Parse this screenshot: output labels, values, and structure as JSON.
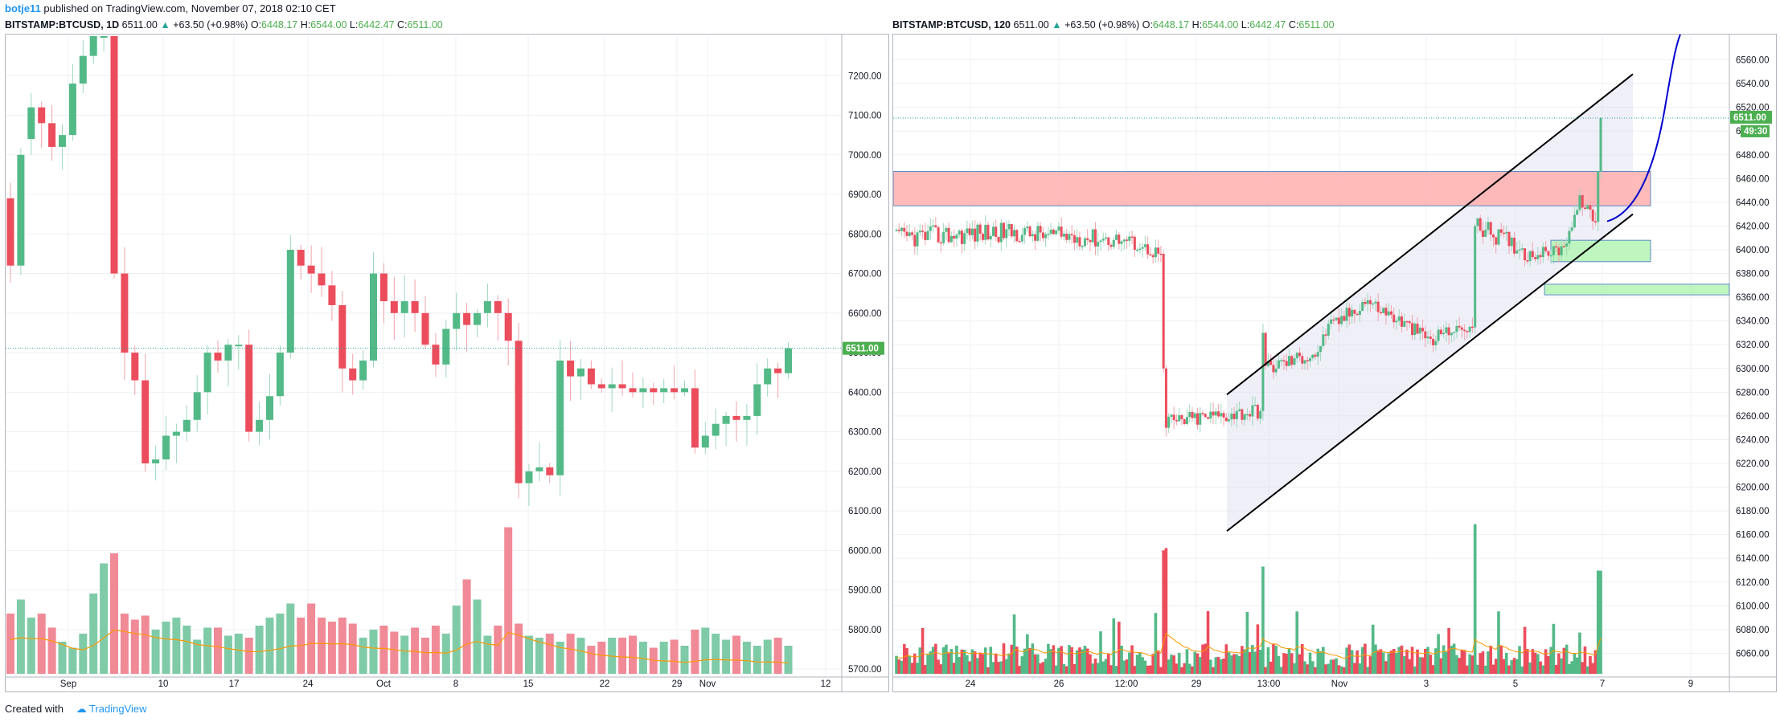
{
  "header": {
    "user": "botje11",
    "published_text": " published on TradingView.com, November 07, 2018 02:10 CET"
  },
  "left_chart": {
    "symbol": "BITSTAMP:BTCUSD, 1D",
    "last": "6511.00",
    "change": "+63.50 (+0.98%)",
    "open_label": "O:",
    "open": "6448.17",
    "high_label": "H:",
    "high": "6544.00",
    "low_label": "L:",
    "low": "6442.47",
    "close_label": "C:",
    "close": "6511.00",
    "price_badge": "6511.00"
  },
  "right_chart": {
    "symbol": "BITSTAMP:BTCUSD, 120",
    "last": "6511.00",
    "change": "+63.50 (+0.98%)",
    "open_label": "O:",
    "open": "6448.17",
    "high_label": "H:",
    "high": "6544.00",
    "low_label": "L:",
    "low": "6442.47",
    "close_label": "C:",
    "close": "6511.00",
    "price_badge": "6511.00",
    "timer_badge": "49:30"
  },
  "footer": {
    "created_with": "Created with",
    "brand": "TradingView"
  },
  "colors": {
    "up": "#26a69a",
    "up_candle": "#53b987",
    "down_candle": "#eb4d5c",
    "volume_up": "#7fcba8",
    "volume_down": "#f08a96",
    "ma": "#ff9800",
    "channel": "#000000",
    "projection": "#0000cc",
    "resistance_zone": "#ffb3b3",
    "support_zone": "#b9f5b9",
    "badge": "#4caf50"
  },
  "chart_data": [
    {
      "type": "candlestick",
      "id": "left",
      "interval": "1D",
      "ylim": [
        5680,
        7300
      ],
      "y_ticks": [
        "7200.00",
        "7100.00",
        "7000.00",
        "6900.00",
        "6800.00",
        "6700.00",
        "6600.00",
        "6500.00",
        "6400.00",
        "6300.00",
        "6200.00",
        "6100.00",
        "6000.00",
        "5900.00",
        "5800.00",
        "5700.00"
      ],
      "x_ticks": [
        "Sep",
        "10",
        "17",
        "24",
        "Oct",
        "8",
        "15",
        "22",
        "29",
        "Nov",
        "12"
      ],
      "candles": [
        [
          6890,
          6720
        ],
        [
          6720,
          7000
        ],
        [
          7040,
          7120
        ],
        [
          7120,
          7080
        ],
        [
          7080,
          7020
        ],
        [
          7020,
          7050
        ],
        [
          7050,
          7180
        ],
        [
          7180,
          7250
        ],
        [
          7250,
          7300
        ],
        [
          7300,
          7300
        ],
        [
          7300,
          6700
        ],
        [
          6700,
          6500
        ],
        [
          6500,
          6430
        ],
        [
          6430,
          6220
        ],
        [
          6220,
          6230
        ],
        [
          6230,
          6290
        ],
        [
          6290,
          6300
        ],
        [
          6300,
          6330
        ],
        [
          6330,
          6400
        ],
        [
          6400,
          6500
        ],
        [
          6500,
          6480
        ],
        [
          6480,
          6520
        ],
        [
          6520,
          6520
        ],
        [
          6520,
          6300
        ],
        [
          6300,
          6330
        ],
        [
          6330,
          6390
        ],
        [
          6390,
          6500
        ],
        [
          6500,
          6760
        ],
        [
          6760,
          6720
        ],
        [
          6720,
          6700
        ],
        [
          6700,
          6670
        ],
        [
          6670,
          6620
        ],
        [
          6620,
          6460
        ],
        [
          6460,
          6430
        ],
        [
          6430,
          6480
        ],
        [
          6480,
          6700
        ],
        [
          6700,
          6630
        ],
        [
          6630,
          6600
        ],
        [
          6600,
          6630
        ],
        [
          6630,
          6600
        ],
        [
          6600,
          6520
        ],
        [
          6520,
          6470
        ],
        [
          6470,
          6560
        ],
        [
          6560,
          6600
        ],
        [
          6600,
          6570
        ],
        [
          6570,
          6600
        ],
        [
          6600,
          6630
        ],
        [
          6630,
          6600
        ],
        [
          6600,
          6530
        ],
        [
          6530,
          6170
        ],
        [
          6170,
          6200
        ],
        [
          6200,
          6210
        ],
        [
          6210,
          6190
        ],
        [
          6190,
          6480
        ],
        [
          6480,
          6440
        ],
        [
          6440,
          6460
        ],
        [
          6460,
          6420
        ],
        [
          6420,
          6410
        ],
        [
          6410,
          6420
        ],
        [
          6420,
          6410
        ],
        [
          6410,
          6400
        ],
        [
          6400,
          6410
        ],
        [
          6410,
          6400
        ],
        [
          6400,
          6410
        ],
        [
          6410,
          6400
        ],
        [
          6400,
          6410
        ],
        [
          6410,
          6260
        ],
        [
          6260,
          6290
        ],
        [
          6290,
          6320
        ],
        [
          6320,
          6340
        ],
        [
          6340,
          6330
        ],
        [
          6330,
          6340
        ],
        [
          6340,
          6420
        ],
        [
          6420,
          6460
        ],
        [
          6460,
          6448
        ],
        [
          6448,
          6511
        ]
      ],
      "volumes": [
        900,
        970,
        880,
        900,
        830,
        760,
        730,
        800,
        1000,
        1150,
        1200,
        900,
        870,
        890,
        820,
        860,
        880,
        840,
        770,
        830,
        830,
        790,
        800,
        780,
        840,
        880,
        900,
        950,
        880,
        950,
        880,
        860,
        880,
        850,
        780,
        820,
        840,
        810,
        790,
        830,
        780,
        840,
        800,
        940,
        1070,
        970,
        790,
        840,
        1330,
        850,
        790,
        780,
        800,
        760,
        800,
        780,
        740,
        760,
        780,
        780,
        790,
        760,
        730,
        760,
        770,
        740,
        820,
        830,
        800,
        770,
        790,
        760,
        740,
        770,
        780,
        740
      ],
      "price_line": 6511
    },
    {
      "type": "candlestick",
      "id": "right",
      "interval": "120",
      "ylim": [
        6040,
        6580
      ],
      "y_ticks": [
        "6560.00",
        "6540.00",
        "6520.00",
        "6500.00",
        "6480.00",
        "6460.00",
        "6440.00",
        "6420.00",
        "6400.00",
        "6380.00",
        "6360.00",
        "6340.00",
        "6320.00",
        "6300.00",
        "6280.00",
        "6260.00",
        "6240.00",
        "6220.00",
        "6200.00",
        "6180.00",
        "6160.00",
        "6140.00",
        "6120.00",
        "6100.00",
        "6080.00",
        "6060.00"
      ],
      "x_ticks": [
        "24",
        "26",
        "12:00",
        "29",
        "13:00",
        "Nov",
        "3",
        "5",
        "7",
        "9"
      ],
      "zones": [
        {
          "kind": "resistance",
          "from": 6437,
          "to": 6466
        },
        {
          "kind": "support",
          "from": 6390,
          "to": 6408
        },
        {
          "kind": "support",
          "from": 6362,
          "to": 6371
        }
      ],
      "price_line": 6511
    }
  ]
}
